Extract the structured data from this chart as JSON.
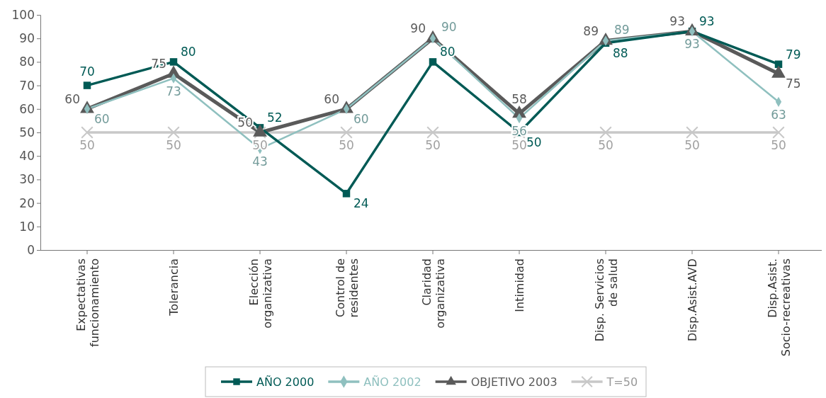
{
  "chart_data": {
    "type": "line",
    "categories": [
      "Expectativas funcionamiento",
      "Tolerancia",
      "Elección organizativa",
      "Control de residentes",
      "Claridad organizativa",
      "Intimidad",
      "Disp. Servicios de salud",
      "Disp.Asist.AVD",
      "Disp.Asist. Socio-recreativas"
    ],
    "series": [
      {
        "name": "AÑO 2000",
        "color": "#005a55",
        "marker": "square",
        "values": [
          70,
          80,
          52,
          24,
          80,
          50,
          88,
          93,
          79
        ]
      },
      {
        "name": "AÑO 2002",
        "color": "#8fc0bf",
        "marker": "diamond",
        "values": [
          60,
          73,
          43,
          60,
          90,
          56,
          89,
          93,
          63
        ]
      },
      {
        "name": "OBJETIVO 2003",
        "color": "#5a5a5a",
        "marker": "triangle",
        "values": [
          60,
          75,
          50,
          60,
          90,
          58,
          89,
          93,
          75
        ]
      },
      {
        "name": "T=50",
        "color": "#c8c8c8",
        "marker": "cross",
        "values": [
          50,
          50,
          50,
          50,
          50,
          50,
          50,
          50,
          50
        ]
      }
    ],
    "ylim": [
      0,
      100
    ],
    "yticks": [
      0,
      10,
      20,
      30,
      40,
      50,
      60,
      70,
      80,
      90,
      100
    ],
    "grid": false,
    "legend": "bottom",
    "data_labels": true
  }
}
